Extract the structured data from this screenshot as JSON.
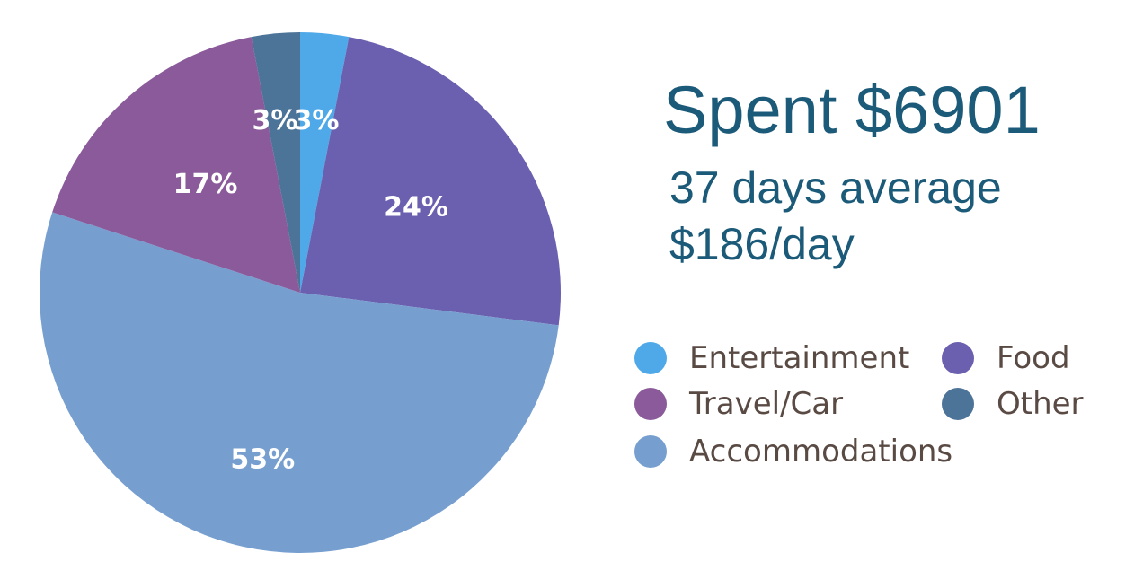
{
  "summary": {
    "headline": "Spent $6901",
    "days_line": "37 days average",
    "per_day_line": "$186/day"
  },
  "chart_data": {
    "type": "pie",
    "start": "12 o'clock",
    "direction": "clockwise",
    "slices": [
      {
        "name": "Entertainment",
        "value": 3,
        "label": "3%",
        "color": "#4fa9e8"
      },
      {
        "name": "Food",
        "value": 24,
        "label": "24%",
        "color": "#6b60b0"
      },
      {
        "name": "Accommodations",
        "value": 53,
        "label": "53%",
        "color": "#769fd0"
      },
      {
        "name": "Travel/Car",
        "value": 17,
        "label": "17%",
        "color": "#8a5a9a"
      },
      {
        "name": "Other",
        "value": 3,
        "label": "3%",
        "color": "#4c7398"
      }
    ],
    "legend": [
      {
        "name": "Entertainment",
        "color": "#4fa9e8"
      },
      {
        "name": "Food",
        "color": "#6b60b0"
      },
      {
        "name": "Travel/Car",
        "color": "#8a5a9a"
      },
      {
        "name": "Other",
        "color": "#4c7398"
      },
      {
        "name": "Accommodations",
        "color": "#769fd0"
      }
    ],
    "legend_placement": "right"
  }
}
